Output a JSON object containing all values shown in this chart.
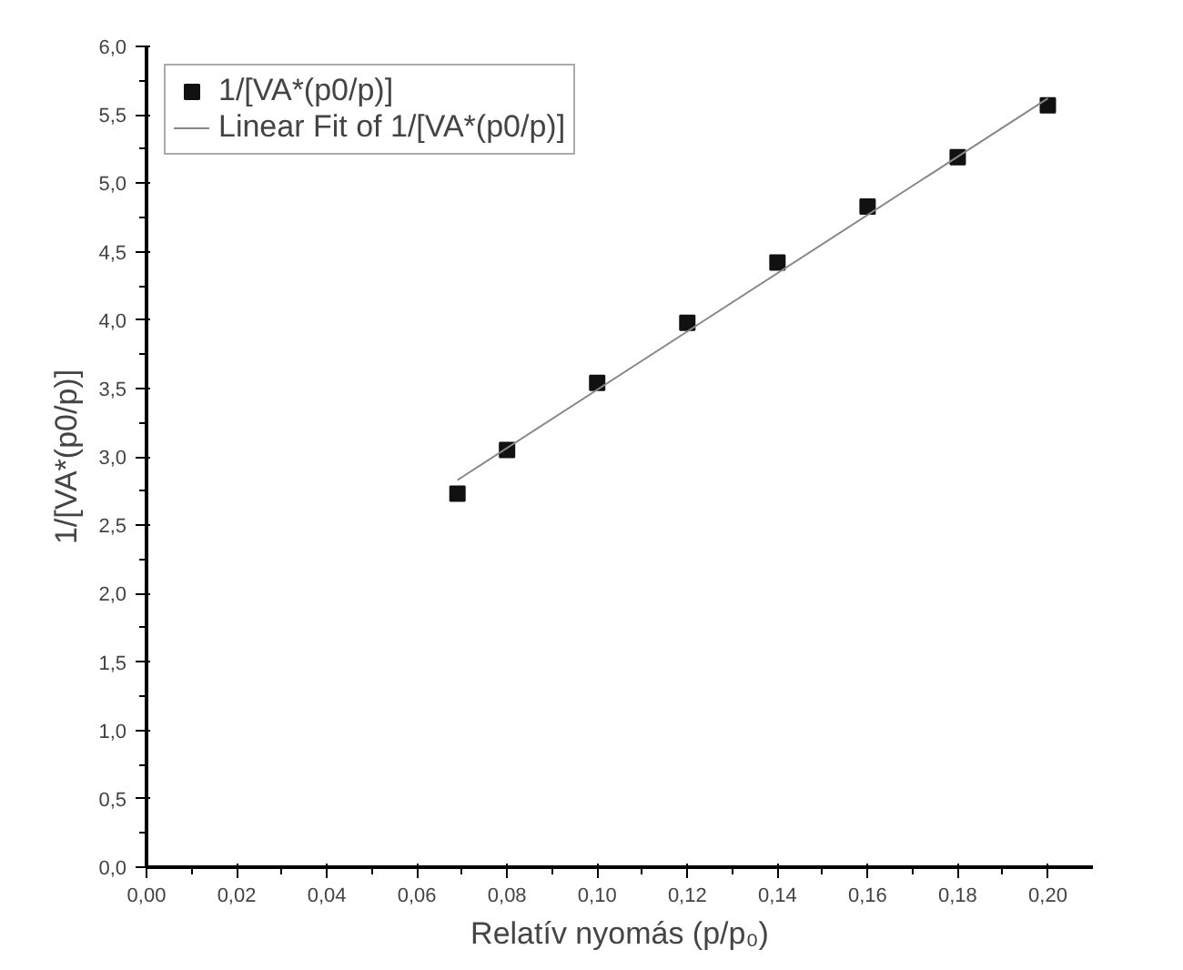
{
  "chart_data": {
    "type": "scatter",
    "xlabel": "Relatív nyomás (p/p₀)",
    "ylabel": "1/[VA*(p0/p)]",
    "xlim": [
      0,
      0.21
    ],
    "ylim": [
      0,
      6.0
    ],
    "xticks": [
      {
        "value": 0,
        "label": "0,00"
      },
      {
        "value": 0.02,
        "label": "0,02"
      },
      {
        "value": 0.04,
        "label": "0,04"
      },
      {
        "value": 0.06,
        "label": "0,06"
      },
      {
        "value": 0.08,
        "label": "0,08"
      },
      {
        "value": 0.1,
        "label": "0,10"
      },
      {
        "value": 0.12,
        "label": "0,12"
      },
      {
        "value": 0.14,
        "label": "0,14"
      },
      {
        "value": 0.16,
        "label": "0,16"
      },
      {
        "value": 0.18,
        "label": "0,18"
      },
      {
        "value": 0.2,
        "label": "0,20"
      }
    ],
    "yticks": [
      {
        "value": 0,
        "label": "0,0"
      },
      {
        "value": 0.5,
        "label": "0,5"
      },
      {
        "value": 1.0,
        "label": "1,0"
      },
      {
        "value": 1.5,
        "label": "1,5"
      },
      {
        "value": 2.0,
        "label": "2,0"
      },
      {
        "value": 2.5,
        "label": "2,5"
      },
      {
        "value": 3.0,
        "label": "3,0"
      },
      {
        "value": 3.5,
        "label": "3,5"
      },
      {
        "value": 4.0,
        "label": "4,0"
      },
      {
        "value": 4.5,
        "label": "4,5"
      },
      {
        "value": 5.0,
        "label": "5,0"
      },
      {
        "value": 5.5,
        "label": "5,5"
      },
      {
        "value": 6.0,
        "label": "6,0"
      }
    ],
    "series": [
      {
        "name": "1/[VA*(p0/p)]",
        "marker": "square",
        "color": "#111111",
        "x": [
          0.069,
          0.08,
          0.1,
          0.12,
          0.14,
          0.16,
          0.18,
          0.2
        ],
        "values": [
          2.73,
          3.05,
          3.54,
          3.98,
          4.42,
          4.83,
          5.19,
          5.57
        ]
      },
      {
        "name": "Linear Fit of 1/[VA*(p0/p)]",
        "type": "line",
        "line_style": "solid",
        "color": "#888888",
        "x": [
          0.069,
          0.2
        ],
        "values": [
          2.83,
          5.62
        ]
      }
    ],
    "legend": "top left",
    "grid": false
  }
}
